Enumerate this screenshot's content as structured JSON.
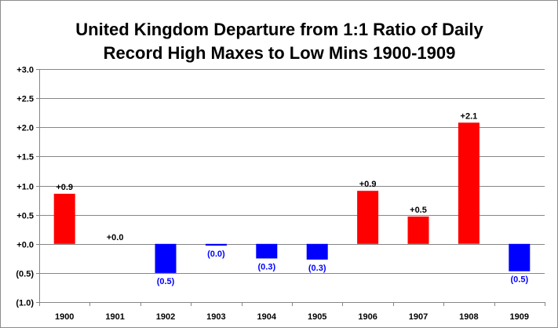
{
  "chart_data": {
    "type": "bar",
    "title": "United Kingdom Departure from 1:1 Ratio of Daily Record High Maxes to Low Mins 1900-1909",
    "title_lines": [
      "United Kingdom Departure from 1:1 Ratio of Daily",
      "Record High Maxes to Low Mins 1900-1909"
    ],
    "xlabel": "",
    "ylabel": "",
    "categories": [
      "1900",
      "1901",
      "1902",
      "1903",
      "1904",
      "1905",
      "1906",
      "1907",
      "1908",
      "1909"
    ],
    "values": [
      0.86,
      0.0,
      -0.5,
      -0.03,
      -0.25,
      -0.27,
      0.91,
      0.47,
      2.08,
      -0.47
    ],
    "data_labels": [
      "+0.9",
      "+0.0",
      "(0.5)",
      "(0.0)",
      "(0.3)",
      "(0.3)",
      "+0.9",
      "+0.5",
      "+2.1",
      "(0.5)"
    ],
    "ylim": [
      -1.0,
      3.0
    ],
    "y_ticks": [
      3.0,
      2.5,
      2.0,
      1.5,
      1.0,
      0.5,
      0.0,
      -0.5,
      -1.0
    ],
    "y_tick_labels": [
      "+3.0",
      "+2.5",
      "+2.0",
      "+1.5",
      "+1.0",
      "+0.5",
      "+0.0",
      "(0.5)",
      "(1.0)"
    ],
    "grid": true,
    "legend": "none",
    "colors": {
      "positive": "#ff0000",
      "negative": "#0000ff",
      "positive_label": "#000000",
      "negative_label": "#0000ff",
      "grid": "#868686",
      "axis": "#868686"
    }
  }
}
